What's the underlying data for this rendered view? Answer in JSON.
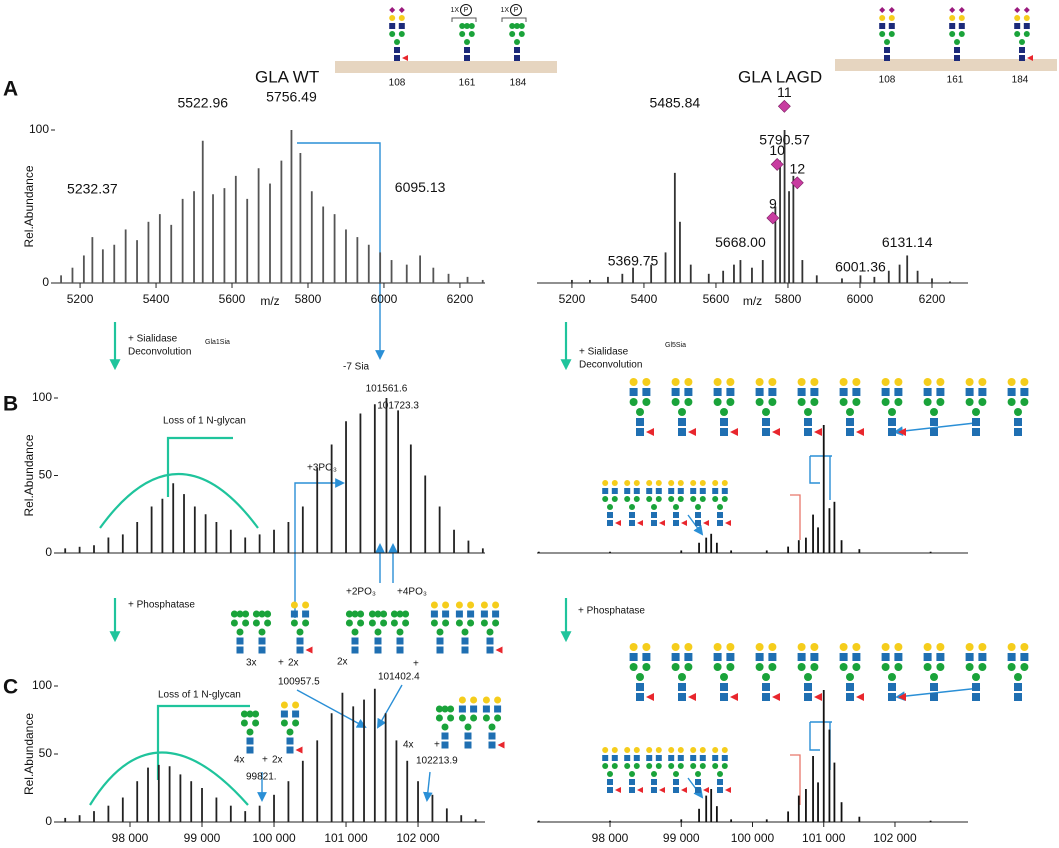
{
  "panels": [
    "A",
    "B",
    "C"
  ],
  "proteins": [
    {
      "name": "GLA WT",
      "sites": [
        "108",
        "161",
        "184"
      ]
    },
    {
      "name": "GLA LAGD",
      "sites": [
        "108",
        "161",
        "184"
      ]
    }
  ],
  "phospho_labels": [
    "1X",
    "1X"
  ],
  "phospho_symbols": [
    "P",
    "P"
  ],
  "steps": {
    "sialidase": [
      "+ Sialidase",
      "+ Sialidase"
    ],
    "deconvolution": [
      "Deconvolution",
      "Deconvolution"
    ],
    "phosphatase": [
      "+ Phosphatase",
      "+ Phosphatase"
    ],
    "sample_tags": [
      "Gla1Sia",
      "Gl5Sia"
    ],
    "desialylation": "-7 Sia",
    "glycan_loss": [
      "Loss of 1 N-glycan",
      "Loss of 1 N-glycan"
    ],
    "phosphates": [
      "+3PO₃",
      "+2PO₃",
      "+4PO₃"
    ]
  },
  "glycoforms": [
    "3x",
    "+",
    "2x",
    "100957.5",
    "2x",
    "+",
    "101402.4",
    "4x",
    "+",
    "2x",
    "99821.",
    "4x",
    "+",
    "102213.9"
  ],
  "chart_data": [
    {
      "type": "bar",
      "ylabel": "Rel.Abundance",
      "xlabel": "m/z",
      "color": "#555555",
      "xlim": [
        5134,
        6266
      ],
      "ylim": [
        0,
        100
      ],
      "xticks": [
        5200,
        5400,
        5600,
        5800,
        6000,
        6200
      ],
      "yticks": [
        0,
        100
      ],
      "x": [
        5150,
        5180,
        5210,
        5232.37,
        5260,
        5290,
        5320,
        5350,
        5380,
        5410,
        5440,
        5470,
        5500,
        5522.96,
        5550,
        5580,
        5610,
        5640,
        5670,
        5700,
        5730,
        5756.49,
        5780,
        5810,
        5840,
        5870,
        5900,
        5930,
        5960,
        5990,
        6020,
        6060,
        6095.13,
        6130,
        6170,
        6220,
        6260
      ],
      "values": [
        5,
        10,
        18,
        30,
        22,
        25,
        35,
        28,
        40,
        45,
        38,
        55,
        60,
        93,
        58,
        62,
        70,
        55,
        75,
        65,
        80,
        100,
        85,
        60,
        50,
        45,
        35,
        30,
        25,
        20,
        15,
        12,
        18,
        10,
        6,
        4,
        2
      ],
      "annotations": [
        {
          "text": "5232.37",
          "x": 5232.37,
          "y": 61
        },
        {
          "text": "5522.96",
          "x": 5522.96,
          "y": 117
        },
        {
          "text": "5756.49",
          "x": 5756.49,
          "y": 121
        },
        {
          "text": "6095.13",
          "x": 6095.13,
          "y": 62
        }
      ]
    },
    {
      "type": "bar",
      "xlabel": "m/z",
      "color": "#333333",
      "xlim": [
        5103,
        6300
      ],
      "ylim": [
        0,
        100
      ],
      "xticks": [
        5200,
        5400,
        5600,
        5800,
        6000,
        6200
      ],
      "x": [
        5200,
        5250,
        5300,
        5340,
        5369.75,
        5420,
        5460,
        5485.84,
        5500,
        5530,
        5580,
        5620,
        5650,
        5668,
        5700,
        5730,
        5765,
        5778,
        5790.57,
        5803,
        5815,
        5840,
        5880,
        5950,
        6001.36,
        6040,
        6080,
        6110,
        6131.14,
        6160,
        6200,
        6250
      ],
      "values": [
        2,
        2,
        4,
        6,
        10,
        12,
        20,
        72,
        40,
        12,
        6,
        8,
        12,
        15,
        10,
        15,
        50,
        80,
        100,
        60,
        70,
        15,
        5,
        3,
        5,
        4,
        8,
        12,
        18,
        8,
        3,
        1
      ],
      "annotations": [
        {
          "text": "5369.75",
          "x": 5369.75,
          "y": 14
        },
        {
          "text": "5485.84",
          "x": 5485.84,
          "y": 117
        },
        {
          "text": "5668.00",
          "x": 5668,
          "y": 26
        },
        {
          "text": "5790.57",
          "x": 5790.57,
          "y": 93
        },
        {
          "text": "6001.36",
          "x": 6001.36,
          "y": 10
        },
        {
          "text": "6131.14",
          "x": 6131.14,
          "y": 26
        },
        {
          "text": "11",
          "x": 5790,
          "y": 124,
          "marker": "diamond"
        },
        {
          "text": "10",
          "x": 5770,
          "y": 86,
          "marker": "diamond"
        },
        {
          "text": "9",
          "x": 5758,
          "y": 51,
          "marker": "diamond"
        },
        {
          "text": "12",
          "x": 5826,
          "y": 74,
          "marker": "diamond"
        }
      ]
    },
    {
      "type": "bar",
      "ylabel": "Rel.Abundance",
      "color": "#222222",
      "xlim": [
        97000,
        102930
      ],
      "ylim": [
        0,
        100
      ],
      "yticks": [
        0,
        50,
        100
      ],
      "x": [
        97100,
        97300,
        97500,
        97700,
        97900,
        98100,
        98300,
        98450,
        98600,
        98750,
        98900,
        99050,
        99200,
        99400,
        99600,
        99800,
        100000,
        100200,
        100400,
        100600,
        100800,
        101000,
        101200,
        101400,
        101561.6,
        101723.3,
        101900,
        102100,
        102300,
        102500,
        102700,
        102900
      ],
      "values": [
        3,
        4,
        5,
        10,
        12,
        20,
        30,
        35,
        45,
        38,
        30,
        25,
        20,
        15,
        10,
        12,
        15,
        20,
        30,
        55,
        70,
        85,
        90,
        96,
        100,
        92,
        70,
        50,
        30,
        15,
        8,
        3
      ],
      "annotations": [
        {
          "text": "101561.6",
          "x": 101561.6,
          "y": 106
        },
        {
          "text": "101723.3",
          "x": 101723.3,
          "y": 95
        }
      ]
    },
    {
      "type": "bar",
      "color": "#111111",
      "xlim": [
        96975,
        103025
      ],
      "ylim": [
        0,
        100
      ],
      "x": [
        97000,
        98000,
        99000,
        99250,
        99350,
        99420,
        99500,
        99700,
        100200,
        100500,
        100650,
        100750,
        100850,
        100920,
        101000,
        101080,
        101150,
        101250,
        101500,
        102500
      ],
      "values": [
        1,
        1,
        2,
        8,
        12,
        15,
        8,
        2,
        2,
        5,
        10,
        12,
        30,
        20,
        100,
        35,
        40,
        10,
        3,
        1
      ]
    },
    {
      "type": "bar",
      "ylabel": "Rel.Abundance",
      "color": "#222222",
      "xlim": [
        97000,
        102930
      ],
      "ylim": [
        0,
        100
      ],
      "yticks": [
        0,
        50,
        100
      ],
      "xticks": [
        {
          "value": 98000,
          "label": "98 000"
        },
        {
          "value": 99000,
          "label": "99 000"
        },
        {
          "value": 100000,
          "label": "100 000"
        },
        {
          "value": 101000,
          "label": "101 000"
        },
        {
          "value": 102000,
          "label": "102 000"
        }
      ],
      "x": [
        97100,
        97300,
        97500,
        97700,
        97900,
        98100,
        98250,
        98400,
        98550,
        98700,
        98850,
        99000,
        99200,
        99400,
        99600,
        99800,
        100000,
        100200,
        100400,
        100600,
        100800,
        100950,
        101100,
        101250,
        101400,
        101550,
        101700,
        101850,
        102000,
        102200,
        102400,
        102600,
        102800
      ],
      "values": [
        3,
        5,
        8,
        12,
        18,
        30,
        40,
        42,
        41,
        35,
        30,
        25,
        18,
        12,
        8,
        12,
        20,
        30,
        45,
        60,
        80,
        95,
        85,
        90,
        98,
        80,
        60,
        45,
        30,
        20,
        10,
        5,
        2
      ]
    },
    {
      "type": "bar",
      "color": "#111111",
      "xlim": [
        96975,
        103025
      ],
      "ylim": [
        0,
        100
      ],
      "xticks": [
        {
          "value": 98000,
          "label": "98 000"
        },
        {
          "value": 99000,
          "label": "99 000"
        },
        {
          "value": 100000,
          "label": "100 000"
        },
        {
          "value": 101000,
          "label": "101 000"
        },
        {
          "value": 102000,
          "label": "102 000"
        }
      ],
      "x": [
        97000,
        98000,
        99000,
        99250,
        99350,
        99420,
        99500,
        99700,
        100200,
        100500,
        100650,
        100750,
        100850,
        100920,
        101000,
        101080,
        101150,
        101250,
        101500,
        102500
      ],
      "values": [
        1,
        1,
        2,
        10,
        20,
        25,
        12,
        2,
        2,
        8,
        20,
        25,
        50,
        30,
        100,
        70,
        45,
        15,
        4,
        1
      ]
    }
  ]
}
